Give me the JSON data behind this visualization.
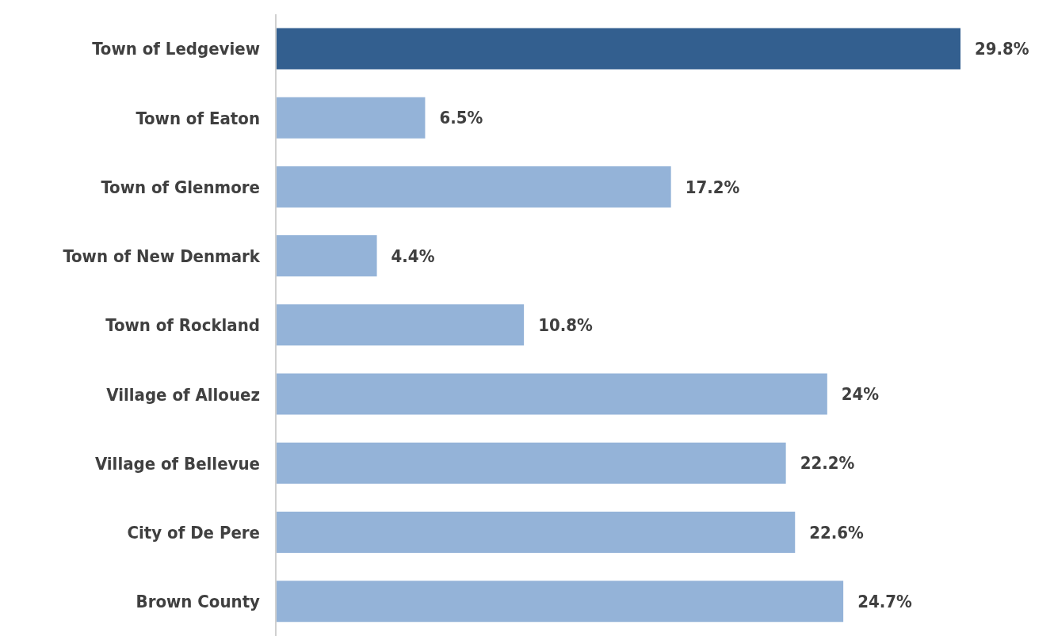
{
  "chart_data": {
    "type": "bar",
    "orientation": "horizontal",
    "categories": [
      "Town of Ledgeview",
      "Town of Eaton",
      "Town of Glenmore",
      "Town of New Denmark",
      "Town of Rockland",
      "Village of Allouez",
      "Village of Bellevue",
      "City of De Pere",
      "Brown County"
    ],
    "values": [
      29.8,
      6.5,
      17.2,
      4.4,
      10.8,
      24,
      22.2,
      22.6,
      24.7
    ],
    "value_labels": [
      "29.8%",
      "6.5%",
      "17.2%",
      "4.4%",
      "10.8%",
      "24%",
      "22.2%",
      "22.6%",
      "24.7%"
    ],
    "colors": [
      "#335f8f",
      "#94b3d8",
      "#94b3d8",
      "#94b3d8",
      "#94b3d8",
      "#94b3d8",
      "#94b3d8",
      "#94b3d8",
      "#94b3d8"
    ],
    "grid": false,
    "legend": false
  }
}
